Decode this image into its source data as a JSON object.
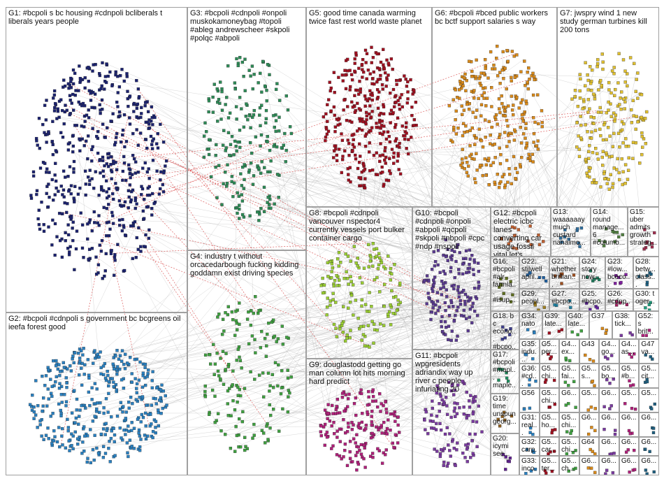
{
  "groups": [
    {
      "label": "G1: #bcpoli s bc housing #cdnpoli bcliberals t liberals years people"
    },
    {
      "label": "G2: #bcpoli #cdnpoli s government bc bcgreens oil ieefa forest good"
    },
    {
      "label": "G3: #bcpoli #cdnpoli #onpoli muskokamoneybag #topoli #ableg andrewscheer #skpoli #polqc #abpoli"
    },
    {
      "label": "G4: industry t without orcacedarbough fucking kidding goddamn exist driving species"
    },
    {
      "label": "G5: good time canada warming twice fast rest world waste planet"
    },
    {
      "label": "G6: #bcpoli #bced public workers bc bctf support salaries s way"
    },
    {
      "label": "G7: jwspry wind 1 new study german turbines kill 200 tons"
    },
    {
      "label": "G8: #bcpoli #cdnpoli vancouver nspector4 currently vessels port bulker container cargo"
    },
    {
      "label": "G9: douglastodd getting go man column lot hits morning hard predict"
    },
    {
      "label": "G10: #bcpoli #cdnpoli #onpoli #abpoli #qcpoli #skpoli #nbpoli #cpc #ndp #nspoli"
    },
    {
      "label": "G11: #bcpoli wpgresidents adriandix way up river c people infuriating 20"
    },
    {
      "label": "G12: #bcpoli electric icbc lanes converting car usage fossil vital let's"
    },
    {
      "label": "G13: waaaaaay much custard nanaimo..."
    },
    {
      "label": "G14: round manage... 6 #columb..."
    },
    {
      "label": "G15: uber admits growth strateg..."
    },
    {
      "label": "G16: #bcpoli #alr farmla... #isup..."
    },
    {
      "label": "G22: stilwell april..."
    },
    {
      "label": "G21: whether brillian..."
    },
    {
      "label": "G24: story now..."
    },
    {
      "label": "G23: #low... bceco..."
    },
    {
      "label": "G28: betw... class..."
    },
    {
      "label": "G29: peopl..."
    },
    {
      "label": "G27: #bcpo..."
    },
    {
      "label": "G25: #bcpo..."
    },
    {
      "label": "G26: #cdnp..."
    },
    {
      "label": "G30: t oger..."
    },
    {
      "label": "G18: b c econo... #bcpo..."
    },
    {
      "label": "G17: #bcpoli #mapl... maple..."
    },
    {
      "label": "G19: time unspun georg..."
    },
    {
      "label": "G20: icymi see..."
    }
  ],
  "small_rows": [
    [
      "G34: nato",
      "G39: late...",
      "G40: late...",
      "G37",
      "G38: tick...",
      "G52: s brit..."
    ],
    [
      "G35: indu...",
      "G5... per...",
      "G4... ex...",
      "G43",
      "G4... go...",
      "G4... as...",
      "G47 va..."
    ],
    [
      "G36: #cd...",
      "G5... chi...",
      "G5... fai...",
      "G5... s...",
      "G5... bo...",
      "G5... #b...",
      "G5... cit..."
    ],
    [
      "G56",
      "G5... chi...",
      "G6...",
      "G5...",
      "G6...",
      "G5...",
      "G5..."
    ],
    [
      "G31: real...",
      "G5... ho...",
      "G5... chi...",
      "G6...",
      "G6...",
      "G6...",
      "G6..."
    ],
    [
      "G32: carp...",
      "G5... car...",
      "G5... chi...",
      "G64",
      "G6...",
      "G6...",
      "G6..."
    ],
    [
      "G33: inco...",
      "G5... ter...",
      "G5... ch...",
      "G6...",
      "G6...",
      "G6...",
      "G6..."
    ]
  ]
}
